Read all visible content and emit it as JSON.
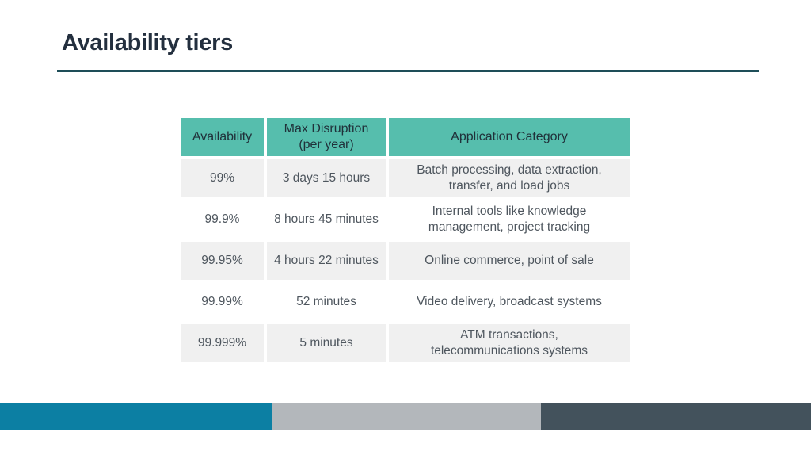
{
  "slide": {
    "title": "Availability tiers"
  },
  "table": {
    "columns": [
      "Availability",
      "Max Disruption\n(per year)",
      "Application Category"
    ],
    "rows": [
      [
        "99%",
        "3 days 15 hours",
        "Batch processing, data extraction,\ntransfer, and load jobs"
      ],
      [
        "99.9%",
        "8 hours 45 minutes",
        "Internal tools like knowledge\nmanagement, project tracking"
      ],
      [
        "99.95%",
        "4 hours 22 minutes",
        "Online commerce, point of sale"
      ],
      [
        "99.99%",
        "52 minutes",
        "Video delivery, broadcast systems"
      ],
      [
        "99.999%",
        "5 minutes",
        "ATM transactions,\ntelecommunications systems"
      ]
    ]
  },
  "colors": {
    "title_text": "#232F3E",
    "title_underline": "#1E4E58",
    "table_header_bg": "#56BEAD",
    "table_header_text": "#20313A",
    "row_alt_bg": "#F0F0F0",
    "row_bg": "#FFFFFF",
    "body_text": "#4E565E",
    "footer_blue": "#0C7FA3",
    "footer_gray": "#B3B7BB",
    "footer_slate": "#43525C"
  }
}
